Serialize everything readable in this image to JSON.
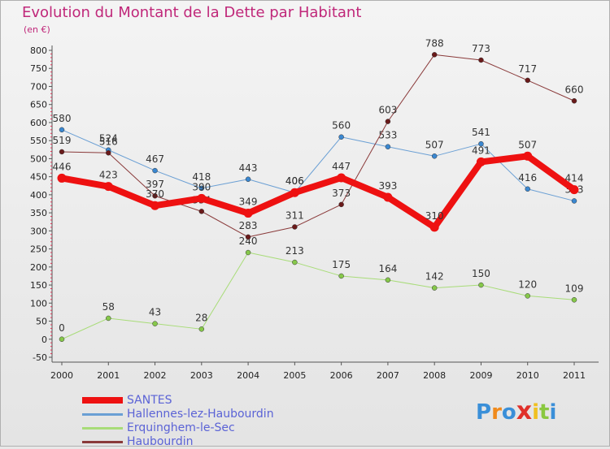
{
  "title": "Evolution du Montant de la Dette par Habitant",
  "unit": "(en €)",
  "brand": "Proxiti",
  "brand_colors": [
    "#3a8fd8",
    "#f08a1c",
    "#3a8fd8",
    "#e0302a",
    "#f0c020",
    "#8ac840",
    "#3a8fd8"
  ],
  "chart_data": {
    "type": "line",
    "categories": [
      "2000",
      "2001",
      "2002",
      "2003",
      "2004",
      "2005",
      "2006",
      "2007",
      "2008",
      "2009",
      "2010",
      "2011"
    ],
    "ylim": [
      -50,
      800
    ],
    "yticks": [
      -50,
      0,
      50,
      100,
      150,
      200,
      250,
      300,
      350,
      400,
      450,
      500,
      550,
      600,
      650,
      700,
      750,
      800
    ],
    "grid": false,
    "legend_position": "bottom-left",
    "series": [
      {
        "name": "Hallennes-lez-Haubourdin",
        "color": "#6a9fd4",
        "dot": "#3a87d0",
        "width": 1,
        "values": [
          580,
          524,
          467,
          418,
          443,
          406,
          560,
          533,
          507,
          541,
          416,
          383
        ]
      },
      {
        "name": "Erquinghem-le-Sec",
        "color": "#a8dc78",
        "dot": "#86c84a",
        "width": 1,
        "values": [
          0,
          58,
          43,
          28,
          240,
          213,
          175,
          164,
          142,
          150,
          120,
          109
        ]
      },
      {
        "name": "Haubourdin",
        "color": "#8a3a3a",
        "dot": "#6a1a1a",
        "width": 1,
        "values": [
          519,
          516,
          397,
          354,
          283,
          311,
          373,
          603,
          788,
          773,
          717,
          660
        ]
      },
      {
        "name": "SANTES",
        "color": "#ee1111",
        "dot": "#ee1111",
        "width": 8,
        "values": [
          446,
          423,
          370,
          390,
          349,
          406,
          447,
          393,
          310,
          491,
          507,
          414
        ]
      }
    ]
  }
}
